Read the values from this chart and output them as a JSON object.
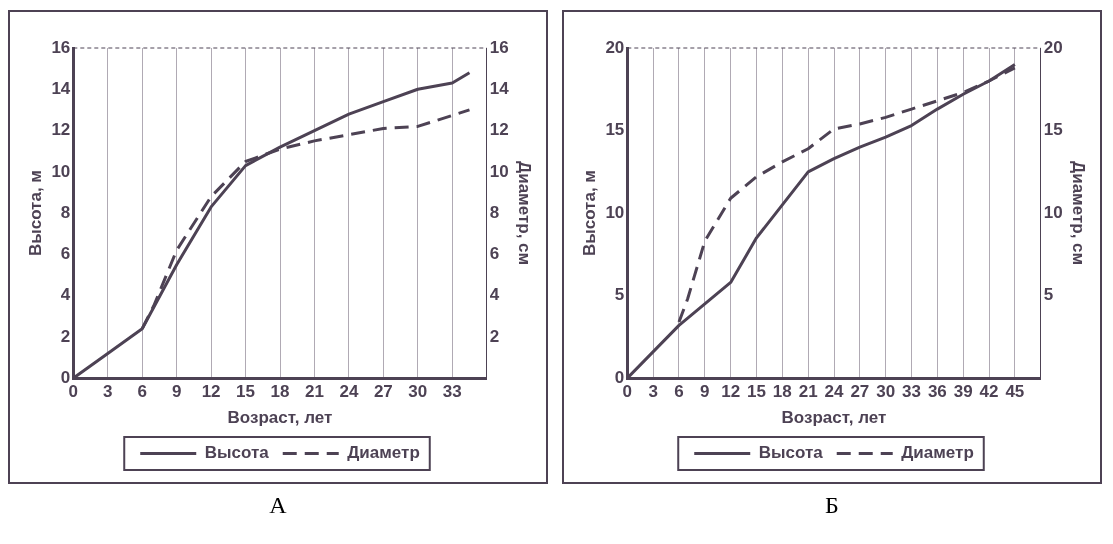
{
  "chart_data": [
    {
      "type": "line",
      "xlabel": "Возраст, лет",
      "ylabel": "Высота, м",
      "y2label": "Диаметр, см",
      "annotations": [
        "А"
      ],
      "xlim": [
        0,
        36
      ],
      "xticks": [
        0,
        3,
        6,
        9,
        12,
        15,
        18,
        21,
        24,
        27,
        30,
        33
      ],
      "ylim": [
        0,
        16
      ],
      "yticks": [
        0,
        2,
        4,
        6,
        8,
        10,
        12,
        14,
        16
      ],
      "y2lim": [
        0,
        16
      ],
      "y2ticks": [
        2,
        4,
        6,
        8,
        10,
        12,
        14,
        16
      ],
      "grid": "x",
      "legend": "bottom",
      "marker": "none",
      "series": [
        {
          "name": "Высота",
          "color": "#4d4254",
          "line_style": "solid",
          "x": [
            0,
            3,
            6,
            9,
            12,
            15,
            18,
            21,
            24,
            27,
            30,
            33,
            34.5
          ],
          "values": [
            0,
            1.2,
            2.4,
            5.5,
            8.3,
            10.3,
            11.2,
            12,
            12.8,
            13.4,
            14,
            14.3,
            14.8
          ]
        },
        {
          "name": "Диаметр",
          "color": "#4d4254",
          "line_style": "dashed",
          "axis": "y2",
          "x": [
            6,
            7,
            9,
            12,
            15,
            18,
            21,
            24,
            27,
            30,
            34.5
          ],
          "values": [
            2.4,
            3.5,
            6.2,
            8.8,
            10.5,
            11.1,
            11.5,
            11.8,
            12.1,
            12.2,
            13.0
          ]
        }
      ]
    },
    {
      "type": "line",
      "xlabel": "Возраст, лет",
      "ylabel": "Высота, м",
      "y2label": "Диаметр, см",
      "annotations": [
        "Б"
      ],
      "xlim": [
        0,
        48
      ],
      "xticks": [
        0,
        3,
        6,
        9,
        12,
        15,
        18,
        21,
        24,
        27,
        30,
        33,
        36,
        39,
        42,
        45
      ],
      "ylim": [
        0,
        20
      ],
      "yticks": [
        0,
        5,
        10,
        15,
        20
      ],
      "y2lim": [
        0,
        20
      ],
      "y2ticks": [
        5,
        10,
        15,
        20
      ],
      "grid": "x",
      "legend": "bottom",
      "marker": "none",
      "series": [
        {
          "name": "Высота",
          "color": "#4d4254",
          "line_style": "solid",
          "x": [
            0,
            6,
            12,
            15,
            18,
            21,
            24,
            27,
            30,
            33,
            36,
            39,
            42,
            45
          ],
          "values": [
            0,
            3.2,
            5.8,
            8.5,
            10.5,
            12.5,
            13.3,
            14,
            14.6,
            15.3,
            16.3,
            17.2,
            18,
            19
          ]
        },
        {
          "name": "Диаметр",
          "color": "#4d4254",
          "line_style": "dashed",
          "axis": "y2",
          "x": [
            6,
            7,
            9,
            12,
            15,
            18,
            21,
            24,
            27,
            30,
            33,
            36,
            39,
            42,
            45
          ],
          "values": [
            3.4,
            4.8,
            8.3,
            10.9,
            12.2,
            13.1,
            13.9,
            15.1,
            15.4,
            15.8,
            16.3,
            16.8,
            17.3,
            18,
            18.8
          ]
        }
      ]
    }
  ]
}
